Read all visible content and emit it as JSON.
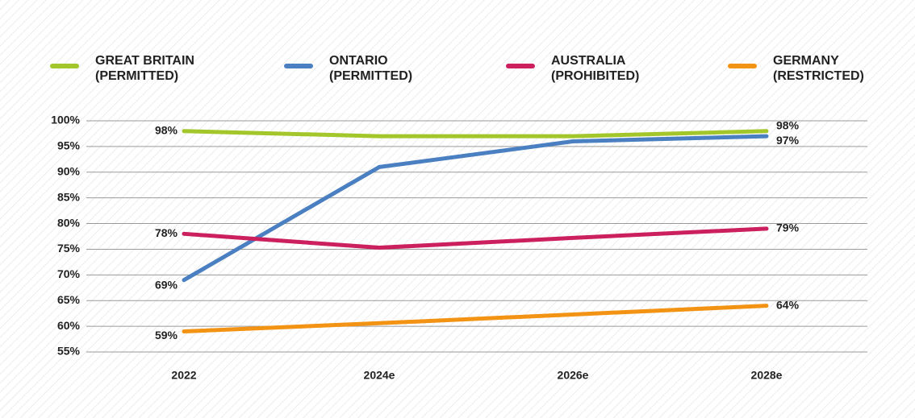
{
  "chart_data": {
    "type": "line",
    "categories": [
      "2022",
      "2024e",
      "2026e",
      "2028e"
    ],
    "series": [
      {
        "name": "GREAT BRITAIN\n(PERMITTED)",
        "color": "#a3c72b",
        "values": [
          98,
          97,
          97,
          98
        ],
        "value_labels": [
          "98%",
          null,
          null,
          "98%"
        ]
      },
      {
        "name": "ONTARIO\n(PERMITTED)",
        "color": "#4a7fc1",
        "values": [
          69,
          91,
          96,
          97
        ],
        "value_labels": [
          "69%",
          null,
          null,
          "97%"
        ]
      },
      {
        "name": "AUSTRALIA\n(PROHIBITED)",
        "color": "#cc1f5e",
        "values": [
          78,
          75.3,
          77.2,
          79
        ],
        "value_labels": [
          "78%",
          null,
          null,
          "79%"
        ]
      },
      {
        "name": "GERMANY\n(RESTRICTED)",
        "color": "#f39314",
        "values": [
          59,
          60.6,
          62.3,
          64
        ],
        "value_labels": [
          "59%",
          null,
          null,
          "64%"
        ]
      }
    ],
    "ylim": [
      55,
      100
    ],
    "yticks": [
      {
        "value": 55,
        "label": "55%"
      },
      {
        "value": 60,
        "label": "60%"
      },
      {
        "value": 65,
        "label": "65%"
      },
      {
        "value": 70,
        "label": "70%"
      },
      {
        "value": 75,
        "label": "75%"
      },
      {
        "value": 80,
        "label": "80%"
      },
      {
        "value": 85,
        "label": "85%"
      },
      {
        "value": 90,
        "label": "90%"
      },
      {
        "value": 95,
        "label": "95%"
      },
      {
        "value": 100,
        "label": "100%"
      }
    ],
    "grid": true
  }
}
